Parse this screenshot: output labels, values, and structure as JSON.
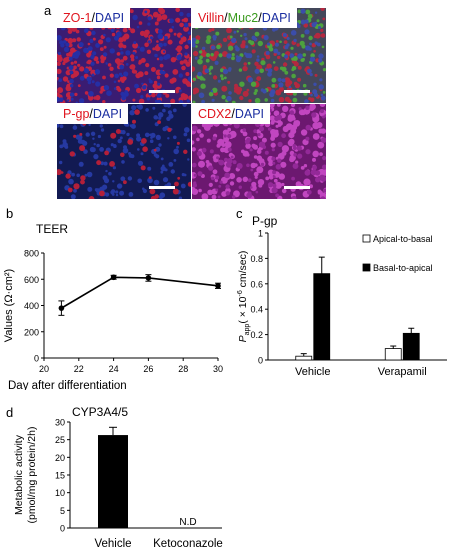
{
  "panel_labels": {
    "a": "a",
    "b": "b",
    "c": "c",
    "d": "d"
  },
  "micrographs": [
    {
      "id": "zo1",
      "label_parts": [
        {
          "text": "ZO-1",
          "color": "red"
        },
        {
          "text": "/",
          "color": "black"
        },
        {
          "text": "DAPI",
          "color": "blue"
        }
      ],
      "tint": "#4a1f7a"
    },
    {
      "id": "villin",
      "label_parts": [
        {
          "text": "Villin",
          "color": "red"
        },
        {
          "text": "/",
          "color": "black"
        },
        {
          "text": "Muc2",
          "color": "green"
        },
        {
          "text": "/",
          "color": "black"
        },
        {
          "text": "DAPI",
          "color": "blue"
        }
      ],
      "tint": "#3b4a55"
    },
    {
      "id": "pgp",
      "label_parts": [
        {
          "text": "P-gp",
          "color": "red"
        },
        {
          "text": "/",
          "color": "black"
        },
        {
          "text": "DAPI",
          "color": "blue"
        }
      ],
      "tint": "#1a1f5a"
    },
    {
      "id": "cdx2",
      "label_parts": [
        {
          "text": "CDX2",
          "color": "red"
        },
        {
          "text": "/",
          "color": "black"
        },
        {
          "text": "DAPI",
          "color": "blue"
        }
      ],
      "tint": "#6a1a6e"
    }
  ],
  "chart_data": [
    {
      "id": "teer",
      "type": "line",
      "title": "TEER",
      "xlabel": "Day after differentiation",
      "ylabel": "Values (Ω·cm²)",
      "x": [
        21,
        24,
        26,
        30
      ],
      "y": [
        380,
        615,
        610,
        550
      ],
      "yerr": [
        55,
        15,
        25,
        20
      ],
      "xlim": [
        20,
        30
      ],
      "ylim": [
        0,
        800
      ],
      "xticks": [
        "20",
        "22",
        "24",
        "26",
        "28",
        "30"
      ],
      "yticks": [
        "0",
        "200",
        "400",
        "600",
        "800"
      ]
    },
    {
      "id": "pgp_transport",
      "type": "bar",
      "title": "P-gp",
      "ylabel_main": "P",
      "ylabel_sub": "app",
      "ylabel_rest": "( × 10",
      "ylabel_exp": "-6",
      "ylabel_unit": " cm/sec)",
      "categories": [
        "Vehicle",
        "Verapamil"
      ],
      "series": [
        {
          "name": "Apical-to-basal",
          "color": "#ffffff",
          "values": [
            0.03,
            0.09
          ],
          "err": [
            0.02,
            0.02
          ]
        },
        {
          "name": "Basal-to-apical",
          "color": "#000000",
          "values": [
            0.68,
            0.21
          ],
          "err": [
            0.13,
            0.04
          ]
        }
      ],
      "ylim": [
        0,
        1
      ],
      "yticks": [
        "0",
        "0.2",
        "0.4",
        "0.6",
        "0.8",
        "1"
      ]
    },
    {
      "id": "cyp3a4",
      "type": "bar",
      "title": "CYP3A4/5",
      "ylabel_line1": "Metabolic activity",
      "ylabel_line2": "(pmol/mg protein/2h)",
      "categories": [
        "Vehicle",
        "Ketoconazole"
      ],
      "values": [
        26.3,
        null
      ],
      "err": [
        2.2,
        null
      ],
      "annotations": [
        "",
        "N.D"
      ],
      "ylim": [
        0,
        30
      ],
      "yticks": [
        "0",
        "5",
        "10",
        "15",
        "20",
        "25",
        "30"
      ]
    }
  ]
}
